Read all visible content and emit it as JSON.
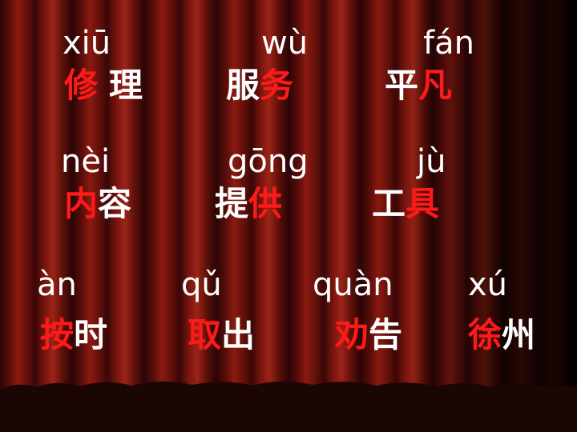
{
  "pinyin": [
    "xiū",
    "wù",
    "fán",
    "nèi",
    "gōng",
    "jù",
    "àn",
    "qǔ",
    "quàn",
    "xú"
  ],
  "words": [
    {
      "chars": [
        {
          "t": "修",
          "c": "red"
        },
        {
          "t": "理",
          "c": "white"
        }
      ]
    },
    {
      "chars": [
        {
          "t": "服",
          "c": "white"
        },
        {
          "t": "务",
          "c": "red"
        }
      ]
    },
    {
      "chars": [
        {
          "t": "平",
          "c": "white"
        },
        {
          "t": "凡",
          "c": "red"
        }
      ]
    },
    {
      "chars": [
        {
          "t": "内",
          "c": "red"
        },
        {
          "t": "容",
          "c": "white"
        }
      ]
    },
    {
      "chars": [
        {
          "t": "提",
          "c": "white"
        },
        {
          "t": "供",
          "c": "red"
        }
      ]
    },
    {
      "chars": [
        {
          "t": "工",
          "c": "white"
        },
        {
          "t": "具",
          "c": "red"
        }
      ]
    },
    {
      "chars": [
        {
          "t": "按",
          "c": "red"
        },
        {
          "t": "时",
          "c": "white"
        }
      ]
    },
    {
      "chars": [
        {
          "t": "取",
          "c": "red"
        },
        {
          "t": "出",
          "c": "white"
        }
      ]
    },
    {
      "chars": [
        {
          "t": "劝",
          "c": "red"
        },
        {
          "t": "告",
          "c": "white"
        }
      ]
    },
    {
      "chars": [
        {
          "t": "徐",
          "c": "red"
        },
        {
          "t": "州",
          "c": "white"
        }
      ]
    }
  ],
  "colors": {
    "red": "#ff1a1a",
    "white": "#ffffff",
    "curtain": "#7a160e",
    "floor": "#1b0606"
  }
}
